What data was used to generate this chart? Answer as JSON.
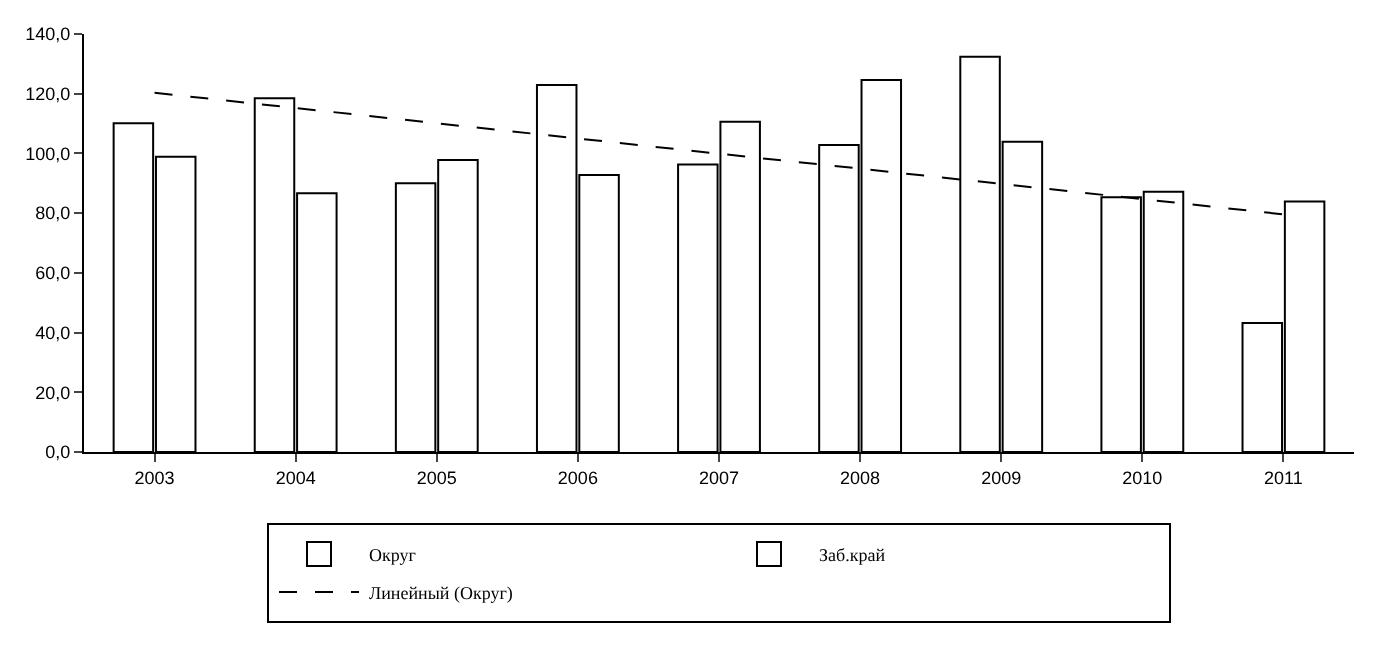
{
  "chart_data": {
    "type": "bar",
    "categories": [
      "2003",
      "2004",
      "2005",
      "2006",
      "2007",
      "2008",
      "2009",
      "2010",
      "2011"
    ],
    "series": [
      {
        "name": "Округ",
        "color": "#ffffff",
        "values": [
          110.1,
          118.5,
          90.0,
          122.9,
          96.3,
          102.8,
          132.4,
          85.3,
          43.2
        ]
      },
      {
        "name": "Заб.край",
        "color": "#ffffff",
        "values": [
          98.9,
          86.7,
          97.8,
          92.8,
          110.6,
          124.6,
          103.9,
          87.2,
          83.9
        ]
      },
      {
        "name": "Линейный (Округ)",
        "type": "line",
        "color": "#000000",
        "line_style": "dashed",
        "values": [
          120.3,
          115.2,
          110.1,
          105.0,
          99.9,
          94.9,
          89.8,
          84.7,
          79.6
        ]
      }
    ],
    "ylim": [
      0,
      140
    ],
    "yticks": [
      {
        "value": 0,
        "label": "0,0"
      },
      {
        "value": 20,
        "label": "20,0"
      },
      {
        "value": 40,
        "label": "40,0"
      },
      {
        "value": 60,
        "label": "60,0"
      },
      {
        "value": 80,
        "label": "80,0"
      },
      {
        "value": 100,
        "label": "100,0"
      },
      {
        "value": 120,
        "label": "120,0"
      },
      {
        "value": 140,
        "label": "140,0"
      }
    ],
    "grid": false,
    "legend": "bottom",
    "marker": "none"
  }
}
